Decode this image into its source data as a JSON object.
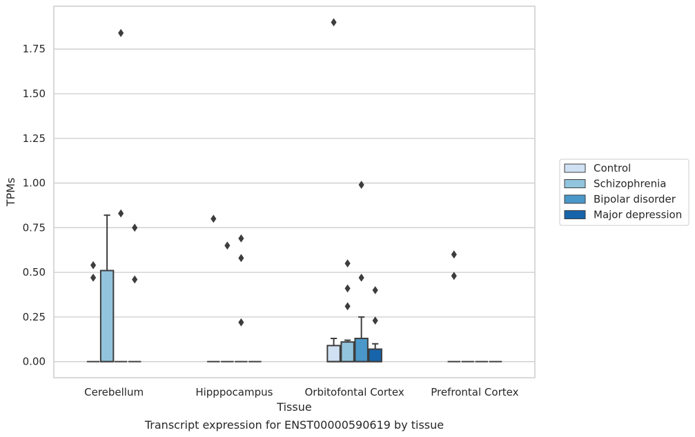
{
  "chart_data": {
    "type": "box",
    "title": "",
    "caption": "Transcript expression for ENST00000590619 by tissue",
    "xlabel": "Tissue",
    "ylabel": "TPMs",
    "ylim": [
      -0.09,
      1.99
    ],
    "yticks": [
      "0.00",
      "0.25",
      "0.50",
      "0.75",
      "1.00",
      "1.25",
      "1.50",
      "1.75"
    ],
    "yticks_values": [
      0,
      0.25,
      0.5,
      0.75,
      1.0,
      1.25,
      1.5,
      1.75
    ],
    "grid": "horizontal",
    "legend_position": "right",
    "categories": [
      "Cerebellum",
      "Hipppocampus",
      "Orbitofontal Cortex",
      "Prefrontal Cortex"
    ],
    "series": [
      {
        "name": "Control",
        "color": "#cfe1f2",
        "boxes": [
          {
            "q1": 0,
            "median": 0,
            "q3": 0,
            "whisker_low": 0,
            "whisker_high": 0,
            "outliers": [
              0.54,
              0.47
            ]
          },
          {
            "q1": 0,
            "median": 0,
            "q3": 0,
            "whisker_low": 0,
            "whisker_high": 0,
            "outliers": [
              0.8
            ]
          },
          {
            "q1": 0,
            "median": 0,
            "q3": 0.09,
            "whisker_low": 0,
            "whisker_high": 0.13,
            "outliers": [
              1.9
            ]
          },
          {
            "q1": 0,
            "median": 0,
            "q3": 0,
            "whisker_low": 0,
            "whisker_high": 0,
            "outliers": [
              0.6,
              0.48
            ]
          }
        ]
      },
      {
        "name": "Schizophrenia",
        "color": "#93c4de",
        "boxes": [
          {
            "q1": 0,
            "median": 0,
            "q3": 0.51,
            "whisker_low": 0,
            "whisker_high": 0.82,
            "outliers": []
          },
          {
            "q1": 0,
            "median": 0,
            "q3": 0,
            "whisker_low": 0,
            "whisker_high": 0,
            "outliers": [
              0.65
            ]
          },
          {
            "q1": 0,
            "median": 0,
            "q3": 0.11,
            "whisker_low": 0,
            "whisker_high": 0.12,
            "outliers": [
              0.55,
              0.41,
              0.31
            ]
          },
          {
            "q1": 0,
            "median": 0,
            "q3": 0,
            "whisker_low": 0,
            "whisker_high": 0,
            "outliers": []
          }
        ]
      },
      {
        "name": "Bipolar disorder",
        "color": "#4a98c9",
        "boxes": [
          {
            "q1": 0,
            "median": 0,
            "q3": 0,
            "whisker_low": 0,
            "whisker_high": 0,
            "outliers": [
              1.84,
              0.83
            ]
          },
          {
            "q1": 0,
            "median": 0,
            "q3": 0,
            "whisker_low": 0,
            "whisker_high": 0,
            "outliers": [
              0.69,
              0.58,
              0.22
            ]
          },
          {
            "q1": 0,
            "median": 0,
            "q3": 0.13,
            "whisker_low": 0,
            "whisker_high": 0.25,
            "outliers": [
              0.99,
              0.47
            ]
          },
          {
            "q1": 0,
            "median": 0,
            "q3": 0,
            "whisker_low": 0,
            "whisker_high": 0,
            "outliers": []
          }
        ]
      },
      {
        "name": "Major depression",
        "color": "#1764ab",
        "boxes": [
          {
            "q1": 0,
            "median": 0,
            "q3": 0,
            "whisker_low": 0,
            "whisker_high": 0,
            "outliers": [
              0.75,
              0.46
            ]
          },
          {
            "q1": 0,
            "median": 0,
            "q3": 0,
            "whisker_low": 0,
            "whisker_high": 0,
            "outliers": []
          },
          {
            "q1": 0,
            "median": 0,
            "q3": 0.07,
            "whisker_low": 0,
            "whisker_high": 0.1,
            "outliers": [
              0.4,
              0.23
            ]
          },
          {
            "q1": 0,
            "median": 0,
            "q3": 0,
            "whisker_low": 0,
            "whisker_high": 0,
            "outliers": []
          }
        ]
      }
    ]
  }
}
